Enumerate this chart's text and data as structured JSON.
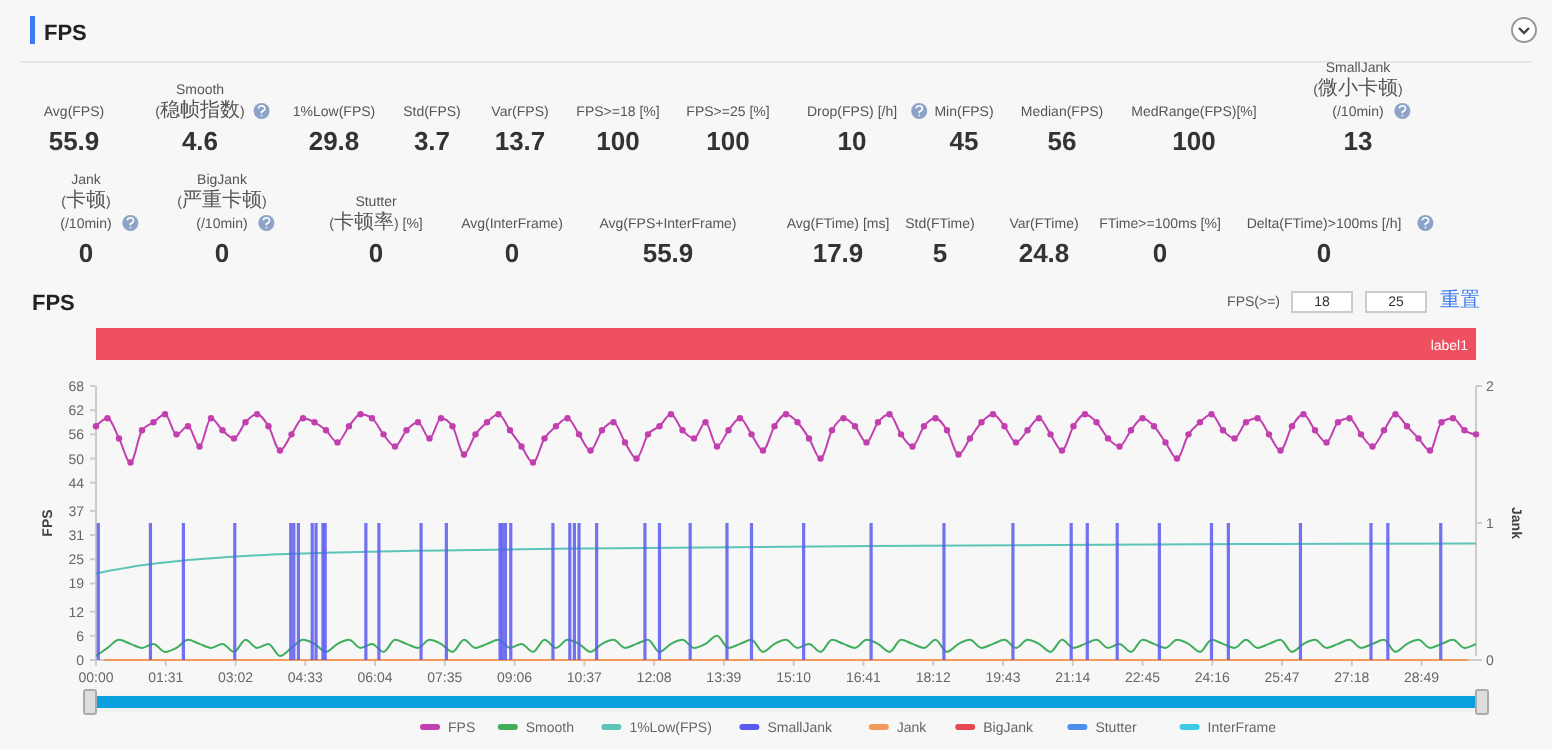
{
  "chart_data": [
    {
      "type": "other",
      "title": "FPS",
      "categories": [
        "Avg(FPS)",
        "Smooth\n(稳帧指数)",
        "1%Low(FPS)",
        "Std(FPS)",
        "Var(FPS)",
        "FPS>=18 [%]",
        "FPS>=25 [%]",
        "Drop(FPS) [/h]",
        "Min(FPS)",
        "Median(FPS)",
        "MedRange(FPS)[%]",
        "SmallJank\n(微小卡顿)\n(/10min)",
        "Jank\n(卡顿)\n(/10min)",
        "BigJank\n(严重卡顿)\n(/10min)",
        "Stutter\n(卡顿率) [%]",
        "Avg(InterFrame)",
        "Avg(FPS+InterFrame)",
        "Avg(FTime) [ms]",
        "Std(FTime)",
        "Var(FTime)",
        "FTime>=100ms [%]",
        "Delta(FTime)>100ms [/h]"
      ],
      "values": [
        55.9,
        4.6,
        29.8,
        3.7,
        13.7,
        100,
        100,
        10,
        45,
        56,
        100,
        13,
        0,
        0,
        0,
        0,
        55.9,
        17.9,
        5,
        24.8,
        0,
        0
      ],
      "data_labels": true
    },
    {
      "type": "line",
      "title": "FPS",
      "ylabel": "FPS",
      "y2label": "Jank",
      "legend": "bottom",
      "annotations": [
        "FPS(>=)",
        "18",
        "25",
        "重置",
        "label1"
      ],
      "xlim": [
        0,
        1800
      ],
      "xticks": [
        {
          "value": 0,
          "label": "00:00"
        },
        {
          "value": 91,
          "label": "01:31"
        },
        {
          "value": 182,
          "label": "03:02"
        },
        {
          "value": 273,
          "label": "04:33"
        },
        {
          "value": 364,
          "label": "06:04"
        },
        {
          "value": 455,
          "label": "07:35"
        },
        {
          "value": 546,
          "label": "09:06"
        },
        {
          "value": 637,
          "label": "10:37"
        },
        {
          "value": 728,
          "label": "12:08"
        },
        {
          "value": 819,
          "label": "13:39"
        },
        {
          "value": 910,
          "label": "15:10"
        },
        {
          "value": 1001,
          "label": "16:41"
        },
        {
          "value": 1092,
          "label": "18:12"
        },
        {
          "value": 1183,
          "label": "19:43"
        },
        {
          "value": 1274,
          "label": "21:14"
        },
        {
          "value": 1365,
          "label": "22:45"
        },
        {
          "value": 1456,
          "label": "24:16"
        },
        {
          "value": 1547,
          "label": "25:47"
        },
        {
          "value": 1638,
          "label": "27:18"
        },
        {
          "value": 1729,
          "label": "28:49"
        }
      ],
      "ylim": [
        0,
        68
      ],
      "yticks": [
        0,
        6,
        12,
        19,
        25,
        31,
        37,
        44,
        50,
        56,
        62,
        68
      ],
      "y2lim": [
        0,
        2
      ],
      "y2ticks": [
        0,
        1,
        2
      ],
      "x": [
        0,
        15,
        30,
        45,
        60,
        75,
        90,
        105,
        120,
        135,
        150,
        165,
        180,
        195,
        210,
        225,
        240,
        255,
        270,
        285,
        300,
        315,
        330,
        345,
        360,
        375,
        390,
        405,
        420,
        435,
        450,
        465,
        480,
        495,
        510,
        525,
        540,
        555,
        570,
        585,
        600,
        615,
        630,
        645,
        660,
        675,
        690,
        705,
        720,
        735,
        750,
        765,
        780,
        795,
        810,
        825,
        840,
        855,
        870,
        885,
        900,
        915,
        930,
        945,
        960,
        975,
        990,
        1005,
        1020,
        1035,
        1050,
        1065,
        1080,
        1095,
        1110,
        1125,
        1140,
        1155,
        1170,
        1185,
        1200,
        1215,
        1230,
        1245,
        1260,
        1275,
        1290,
        1305,
        1320,
        1335,
        1350,
        1365,
        1380,
        1395,
        1410,
        1425,
        1440,
        1455,
        1470,
        1485,
        1500,
        1515,
        1530,
        1545,
        1560,
        1575,
        1590,
        1605,
        1620,
        1635,
        1650,
        1665,
        1680,
        1695,
        1710,
        1725,
        1740,
        1755,
        1770,
        1785,
        1800
      ],
      "series": [
        {
          "name": "FPS",
          "color": "#c23fb0",
          "marker": "circle",
          "values": [
            58,
            60,
            55,
            49,
            57,
            59,
            61,
            56,
            58,
            53,
            60,
            57,
            55,
            59,
            61,
            58,
            52,
            56,
            60,
            59,
            57,
            54,
            58,
            61,
            60,
            56,
            53,
            57,
            59,
            55,
            60,
            58,
            51,
            56,
            59,
            61,
            57,
            53,
            49,
            55,
            58,
            60,
            56,
            52,
            57,
            59,
            54,
            50,
            56,
            58,
            61,
            57,
            55,
            59,
            53,
            57,
            60,
            56,
            52,
            58,
            61,
            59,
            55,
            50,
            57,
            60,
            58,
            54,
            59,
            61,
            56,
            53,
            58,
            60,
            57,
            51,
            55,
            59,
            61,
            58,
            54,
            57,
            60,
            56,
            52,
            58,
            61,
            59,
            55,
            53,
            57,
            60,
            58,
            54,
            50,
            56,
            59,
            61,
            57,
            55,
            59,
            60,
            56,
            52,
            58,
            61,
            57,
            54,
            59,
            60,
            56,
            53,
            57,
            61,
            58,
            55,
            52,
            59,
            60,
            57,
            56
          ]
        },
        {
          "name": "Smooth",
          "color": "#3fae5a",
          "values": [
            1,
            3,
            5,
            4,
            3,
            4,
            2,
            3,
            5,
            4,
            3,
            4,
            2,
            5,
            3,
            4,
            1,
            3,
            5,
            4,
            2,
            4,
            5,
            3,
            4,
            2,
            5,
            4,
            3,
            5,
            4,
            2,
            5,
            3,
            4,
            5,
            3,
            4,
            2,
            5,
            3,
            5,
            4,
            2,
            4,
            5,
            3,
            4,
            5,
            2,
            4,
            5,
            3,
            4,
            6,
            3,
            4,
            5,
            2,
            4,
            5,
            3,
            4,
            2,
            5,
            4,
            3,
            5,
            4,
            2,
            5,
            4,
            3,
            5,
            2,
            4,
            5,
            3,
            4,
            5,
            3,
            5,
            4,
            2,
            5,
            3,
            4,
            5,
            3,
            4,
            2,
            5,
            4,
            3,
            5,
            4,
            2,
            5,
            4,
            3,
            5,
            3,
            4,
            5,
            2,
            4,
            5,
            3,
            4,
            5,
            3,
            4,
            5,
            2,
            4,
            5,
            3,
            4,
            5,
            3,
            4
          ]
        },
        {
          "name": "1%Low(FPS)",
          "color": "#5cc4b8",
          "x": [
            0,
            60,
            120,
            200,
            300,
            450,
            600,
            900,
            1200,
            1500,
            1800
          ],
          "values": [
            21.5,
            23.5,
            24.8,
            25.9,
            26.6,
            27.2,
            27.6,
            28.1,
            28.5,
            28.8,
            28.9
          ]
        },
        {
          "name": "SmallJank",
          "color": "#5a5af0",
          "type": "bar",
          "axis": "y2",
          "x": [
            3,
            71,
            114,
            181,
            254,
            258,
            264,
            282,
            287,
            296,
            299,
            352,
            369,
            424,
            457,
            527,
            530,
            534,
            541,
            596,
            618,
            624,
            630,
            653,
            716,
            735,
            775,
            823,
            855,
            923,
            1011,
            1106,
            1196,
            1272,
            1293,
            1332,
            1387,
            1455,
            1477,
            1571,
            1663,
            1685,
            1754
          ],
          "values": [
            1,
            1,
            1,
            1,
            1,
            1,
            1,
            1,
            1,
            1,
            1,
            1,
            1,
            1,
            1,
            1,
            1,
            1,
            1,
            1,
            1,
            1,
            1,
            1,
            1,
            1,
            1,
            1,
            1,
            1,
            1,
            1,
            1,
            1,
            1,
            1,
            1,
            1,
            1,
            1,
            1,
            1,
            1
          ]
        },
        {
          "name": "Jank",
          "color": "#f39a5a",
          "axis": "y2",
          "x": [
            10,
            1790
          ],
          "values": [
            0,
            0
          ]
        },
        {
          "name": "BigJank",
          "color": "#e8474f",
          "values": [
            null,
            null,
            null,
            null,
            null,
            null,
            null,
            null,
            null,
            null,
            null,
            null,
            null,
            null,
            null,
            null,
            null,
            null,
            null,
            null,
            null,
            null,
            null,
            null,
            null,
            null,
            null,
            null,
            null,
            null,
            null,
            null,
            null,
            null,
            null,
            null,
            null,
            null,
            null,
            null,
            null,
            null,
            null,
            null,
            null,
            null,
            null,
            null,
            null,
            null,
            null,
            null,
            null,
            null,
            null,
            null,
            null,
            null,
            null,
            null,
            null,
            null,
            null,
            null,
            null,
            null,
            null,
            null,
            null,
            null,
            null,
            null,
            null,
            null,
            null,
            null,
            null,
            null,
            null,
            null,
            null,
            null,
            null,
            null,
            null,
            null,
            null,
            null,
            null,
            null,
            null,
            null,
            null,
            null,
            null,
            null,
            null,
            null,
            null,
            null,
            null,
            null,
            null,
            null,
            null,
            null,
            null,
            null,
            null,
            null,
            null,
            null,
            null,
            null,
            null,
            null,
            null,
            null,
            null,
            null,
            null
          ]
        },
        {
          "name": "Stutter",
          "color": "#4a8ff0",
          "values": [
            null,
            null,
            null,
            null,
            null,
            null,
            null,
            null,
            null,
            null,
            null,
            null,
            null,
            null,
            null,
            null,
            null,
            null,
            null,
            null,
            null,
            null,
            null,
            null,
            null,
            null,
            null,
            null,
            null,
            null,
            null,
            null,
            null,
            null,
            null,
            null,
            null,
            null,
            null,
            null,
            null,
            null,
            null,
            null,
            null,
            null,
            null,
            null,
            null,
            null,
            null,
            null,
            null,
            null,
            null,
            null,
            null,
            null,
            null,
            null,
            null,
            null,
            null,
            null,
            null,
            null,
            null,
            null,
            null,
            null,
            null,
            null,
            null,
            null,
            null,
            null,
            null,
            null,
            null,
            null,
            null,
            null,
            null,
            null,
            null,
            null,
            null,
            null,
            null,
            null,
            null,
            null,
            null,
            null,
            null,
            null,
            null,
            null,
            null,
            null,
            null,
            null,
            null,
            null,
            null,
            null,
            null,
            null,
            null,
            null,
            null,
            null,
            null,
            null,
            null,
            null,
            null,
            null,
            null,
            null,
            null
          ]
        },
        {
          "name": "InterFrame",
          "color": "#3ccbe0",
          "values": [
            null,
            null,
            null,
            null,
            null,
            null,
            null,
            null,
            null,
            null,
            null,
            null,
            null,
            null,
            null,
            null,
            null,
            null,
            null,
            null,
            null,
            null,
            null,
            null,
            null,
            null,
            null,
            null,
            null,
            null,
            null,
            null,
            null,
            null,
            null,
            null,
            null,
            null,
            null,
            null,
            null,
            null,
            null,
            null,
            null,
            null,
            null,
            null,
            null,
            null,
            null,
            null,
            null,
            null,
            null,
            null,
            null,
            null,
            null,
            null,
            null,
            null,
            null,
            null,
            null,
            null,
            null,
            null,
            null,
            null,
            null,
            null,
            null,
            null,
            null,
            null,
            null,
            null,
            null,
            null,
            null,
            null,
            null,
            null,
            null,
            null,
            null,
            null,
            null,
            null,
            null,
            null,
            null,
            null,
            null,
            null,
            null,
            null,
            null,
            null,
            null,
            null,
            null,
            null,
            null,
            null,
            null,
            null,
            null,
            null,
            null,
            null,
            null,
            null,
            null,
            null,
            null,
            null,
            null,
            null,
            null
          ]
        }
      ]
    }
  ]
}
